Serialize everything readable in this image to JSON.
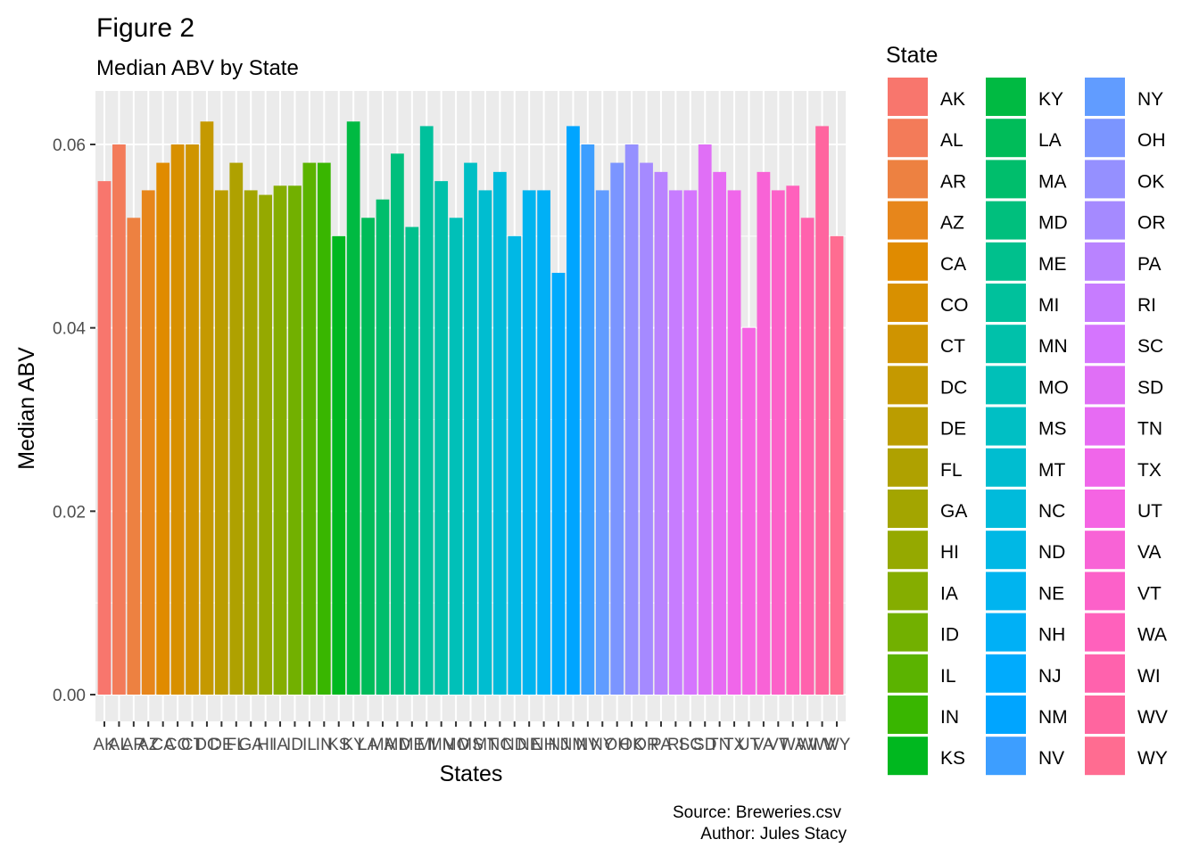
{
  "chart_data": {
    "type": "bar",
    "title": "Figure 2",
    "subtitle": "Median ABV by State",
    "xlabel": "States",
    "ylabel": "Median ABV",
    "ylim": [
      0,
      0.065
    ],
    "yticks": [
      "0.00",
      "0.02",
      "0.04",
      "0.06"
    ],
    "ytick_values": [
      0,
      0.02,
      0.04,
      0.06
    ],
    "grid": true,
    "legend_title": "State",
    "legend_position": "right",
    "caption": [
      "Source: Breweries.csv",
      "Author: Jules Stacy"
    ],
    "categories": [
      "AK",
      "AL",
      "AR",
      "AZ",
      "CA",
      "CO",
      "CT",
      "DC",
      "DE",
      "FL",
      "GA",
      "HI",
      "IA",
      "ID",
      "IL",
      "IN",
      "KS",
      "KY",
      "LA",
      "MA",
      "MD",
      "ME",
      "MI",
      "MN",
      "MO",
      "MS",
      "MT",
      "NC",
      "ND",
      "NE",
      "NH",
      "NJ",
      "NM",
      "NV",
      "NY",
      "OH",
      "OK",
      "OR",
      "PA",
      "RI",
      "SC",
      "SD",
      "TN",
      "TX",
      "UT",
      "VA",
      "VT",
      "WA",
      "WI",
      "WV",
      "WY"
    ],
    "values": [
      0.056,
      0.06,
      0.052,
      0.055,
      0.058,
      0.06,
      0.06,
      0.0625,
      0.055,
      0.058,
      0.055,
      0.0545,
      0.0555,
      0.0555,
      0.058,
      0.058,
      0.05,
      0.0625,
      0.052,
      0.054,
      0.059,
      0.051,
      0.062,
      0.056,
      0.052,
      0.058,
      0.055,
      0.057,
      0.05,
      0.055,
      0.055,
      0.046,
      0.062,
      0.06,
      0.055,
      0.058,
      0.06,
      0.058,
      0.057,
      0.055,
      0.055,
      0.06,
      0.057,
      0.055,
      0.04,
      0.057,
      0.055,
      0.0555,
      0.052,
      0.062,
      0.05
    ],
    "colors": [
      "#F8766D",
      "#F37B59",
      "#ED8141",
      "#E7861B",
      "#E08B00",
      "#D89000",
      "#CF9400",
      "#C59900",
      "#BB9D00",
      "#AFA100",
      "#A3A500",
      "#95A900",
      "#85AD00",
      "#72B000",
      "#5BB300",
      "#39B600",
      "#00B81F",
      "#00BA42",
      "#00BC59",
      "#00BE6C",
      "#00BF7D",
      "#00C08D",
      "#00C19C",
      "#00C1AA",
      "#00C0B8",
      "#00BFC4",
      "#00BDD0",
      "#00BBDB",
      "#00B8E5",
      "#00B4EF",
      "#00B0F6",
      "#00ABFD",
      "#00A5FF",
      "#3D9EFF",
      "#619CFF",
      "#7B95FF",
      "#9590FF",
      "#A58AFF",
      "#B983FF",
      "#C77CFF",
      "#D575FE",
      "#E06FF6",
      "#E76BF3",
      "#F066EA",
      "#F564E3",
      "#F863D6",
      "#FC61C9",
      "#FF61BC",
      "#FF62AD",
      "#FF659F",
      "#FF6C91"
    ]
  }
}
